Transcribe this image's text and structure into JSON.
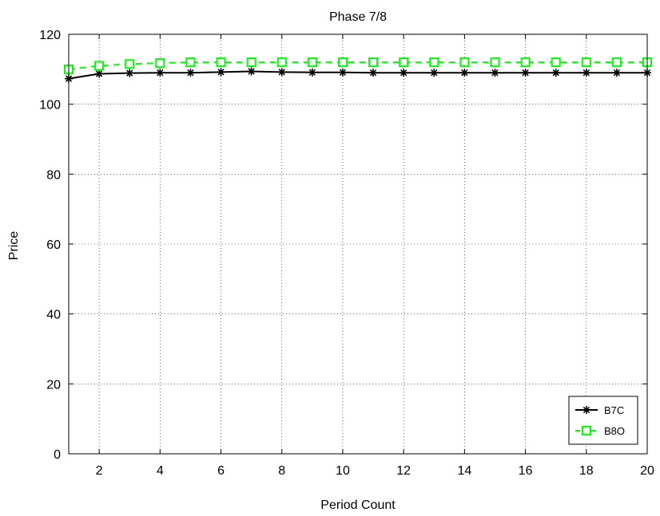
{
  "chart_data": {
    "type": "line",
    "title": "Phase 7/8",
    "xlabel": "Period Count",
    "ylabel": "Price",
    "xlim": [
      1,
      20
    ],
    "ylim": [
      0,
      120
    ],
    "xticks": [
      2,
      4,
      6,
      8,
      10,
      12,
      14,
      16,
      18,
      20
    ],
    "yticks": [
      0,
      20,
      40,
      60,
      80,
      100,
      120
    ],
    "grid": true,
    "legend_position": "bottom-right",
    "x": [
      1,
      2,
      3,
      4,
      5,
      6,
      7,
      8,
      9,
      10,
      11,
      12,
      13,
      14,
      15,
      16,
      17,
      18,
      19,
      20
    ],
    "series": [
      {
        "name": "B7C",
        "color": "#000000",
        "marker": "asterisk",
        "line_style": "solid",
        "values": [
          107.3,
          108.7,
          108.9,
          109.0,
          109.0,
          109.2,
          109.4,
          109.2,
          109.1,
          109.1,
          109.0,
          109.0,
          109.0,
          109.0,
          109.0,
          109.0,
          109.0,
          109.0,
          109.0,
          109.0
        ]
      },
      {
        "name": "B8O",
        "color": "#00ff00",
        "marker": "square",
        "line_style": "dashed",
        "values": [
          110.0,
          111.0,
          111.5,
          111.8,
          112.0,
          112.0,
          112.0,
          112.0,
          112.0,
          112.0,
          112.0,
          112.0,
          112.0,
          112.0,
          112.0,
          112.0,
          112.0,
          112.0,
          112.0,
          112.0
        ]
      }
    ]
  }
}
